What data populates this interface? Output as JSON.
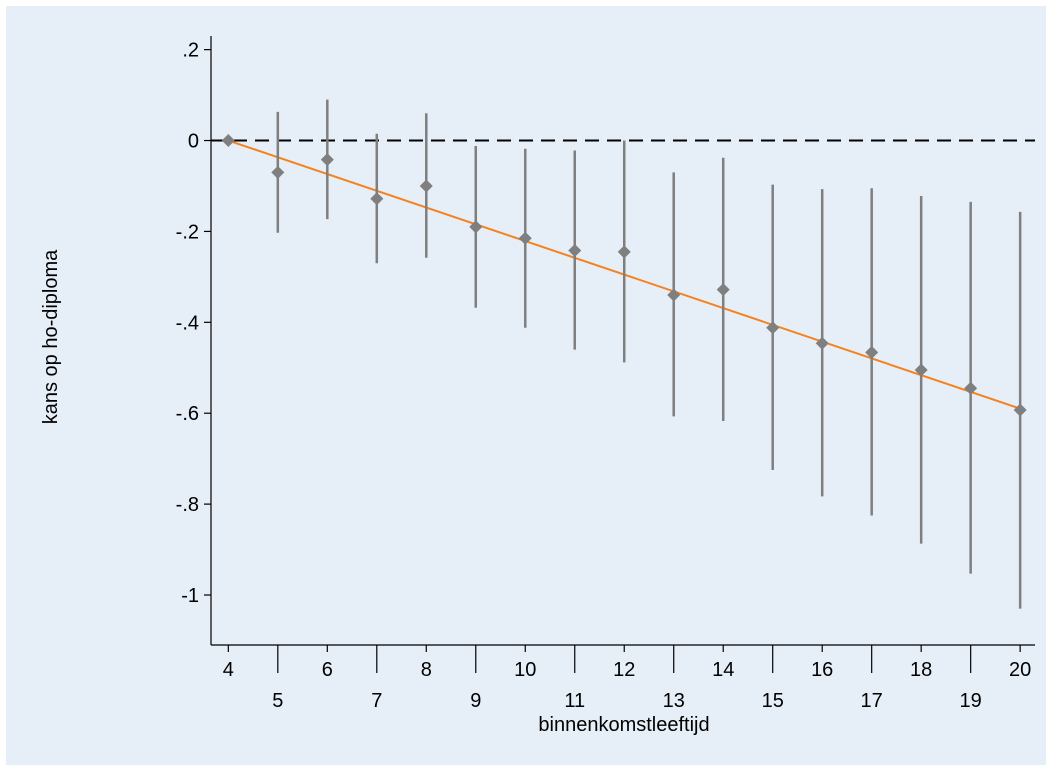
{
  "chart_data": {
    "type": "scatter",
    "xlabel": "binnenkomstleeftijd",
    "ylabel": "kans op ho-diploma",
    "x_ticks": [
      4,
      5,
      6,
      7,
      8,
      9,
      10,
      11,
      12,
      13,
      14,
      15,
      16,
      17,
      18,
      19,
      20
    ],
    "y_ticks": [
      0.2,
      0,
      -0.2,
      -0.4,
      -0.6,
      -0.8,
      -1
    ],
    "y_tick_labels": [
      ".2",
      "0",
      "-.2",
      "-.4",
      "-.6",
      "-.8",
      "-1"
    ],
    "xlim": [
      3.65,
      20.3
    ],
    "ylim": [
      -1.11,
      0.23
    ],
    "reference_line": {
      "y": 0,
      "style": "dashed",
      "color": "#000000"
    },
    "points": [
      {
        "x": 4,
        "y": 0.0,
        "lo": 0.0,
        "hi": 0.0
      },
      {
        "x": 5,
        "y": -0.07,
        "lo": -0.203,
        "hi": 0.063
      },
      {
        "x": 6,
        "y": -0.042,
        "lo": -0.173,
        "hi": 0.09
      },
      {
        "x": 7,
        "y": -0.128,
        "lo": -0.27,
        "hi": 0.015
      },
      {
        "x": 8,
        "y": -0.1,
        "lo": -0.258,
        "hi": 0.06
      },
      {
        "x": 9,
        "y": -0.19,
        "lo": -0.368,
        "hi": -0.012
      },
      {
        "x": 10,
        "y": -0.215,
        "lo": -0.412,
        "hi": -0.018
      },
      {
        "x": 11,
        "y": -0.242,
        "lo": -0.46,
        "hi": -0.022
      },
      {
        "x": 12,
        "y": -0.245,
        "lo": -0.488,
        "hi": 0.0
      },
      {
        "x": 13,
        "y": -0.34,
        "lo": -0.607,
        "hi": -0.07
      },
      {
        "x": 14,
        "y": -0.328,
        "lo": -0.617,
        "hi": -0.038
      },
      {
        "x": 15,
        "y": -0.412,
        "lo": -0.725,
        "hi": -0.097
      },
      {
        "x": 16,
        "y": -0.446,
        "lo": -0.783,
        "hi": -0.107
      },
      {
        "x": 17,
        "y": -0.466,
        "lo": -0.825,
        "hi": -0.105
      },
      {
        "x": 18,
        "y": -0.505,
        "lo": -0.887,
        "hi": -0.122
      },
      {
        "x": 19,
        "y": -0.545,
        "lo": -0.953,
        "hi": -0.135
      },
      {
        "x": 20,
        "y": -0.593,
        "lo": -1.03,
        "hi": -0.157
      }
    ],
    "fit_line": {
      "x": [
        4,
        20
      ],
      "y": [
        0.0,
        -0.59
      ]
    },
    "grid": false,
    "colors": {
      "background": "#e6eef7",
      "marker": "#7f7f7f",
      "ci": "#7f7f7f",
      "fit_line": "#f5821f",
      "axis": "#000000"
    }
  }
}
